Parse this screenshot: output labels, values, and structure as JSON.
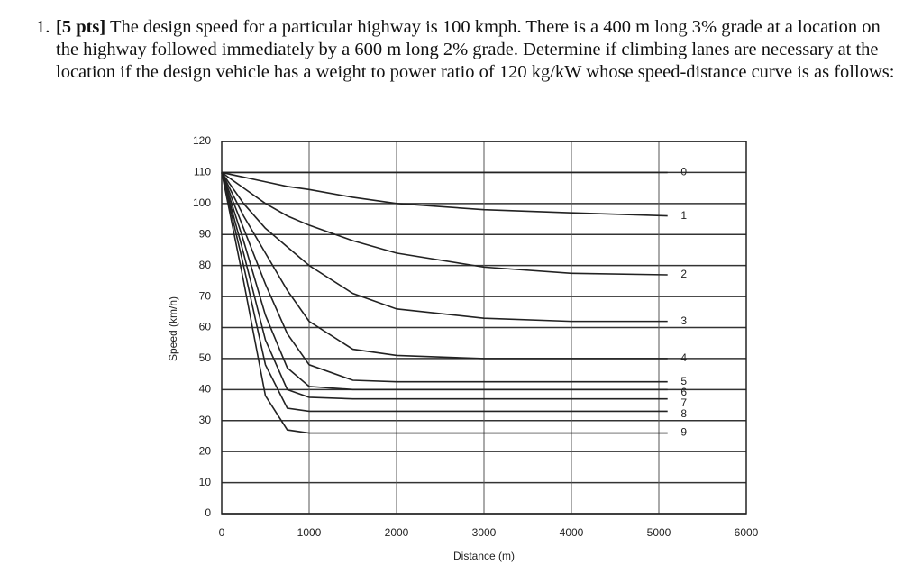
{
  "problem": {
    "number": "1.",
    "points": "[5 pts]",
    "text": "The design speed for a particular highway is 100 kmph. There is a 400 m long 3% grade at a location on the highway followed immediately by a 600 m long 2% grade. Determine if climbing lanes are necessary at the location if the design vehicle has a weight to power ratio of 120 kg/kW whose speed-distance curve is as follows:"
  },
  "chart_data": {
    "type": "line",
    "xlabel": "Distance (m)",
    "ylabel": "Speed (km/h)",
    "x": [
      0,
      250,
      500,
      750,
      1000,
      1500,
      2000,
      3000,
      4000,
      5100
    ],
    "series": [
      {
        "name": "0",
        "color": "#222222",
        "values": [
          110,
          110,
          110,
          110,
          110,
          110,
          110,
          110,
          110,
          110
        ]
      },
      {
        "name": "1",
        "color": "#222222",
        "values": [
          110,
          108.5,
          107,
          105.5,
          104.5,
          102,
          100,
          98,
          97,
          96
        ]
      },
      {
        "name": "2",
        "color": "#222222",
        "values": [
          110,
          105,
          100,
          96,
          93,
          88,
          84,
          79.5,
          77.5,
          77
        ]
      },
      {
        "name": "3",
        "color": "#222222",
        "values": [
          110,
          100,
          92,
          86,
          80,
          71,
          66,
          63,
          62,
          62
        ]
      },
      {
        "name": "4",
        "color": "#222222",
        "values": [
          110,
          96,
          84,
          72,
          62,
          53,
          51,
          50,
          50,
          50
        ]
      },
      {
        "name": "5",
        "color": "#222222",
        "values": [
          110,
          92,
          74,
          58,
          48,
          43,
          42.5,
          42.5,
          42.5,
          42.5
        ]
      },
      {
        "name": "6",
        "color": "#222222",
        "values": [
          110,
          88,
          64,
          47,
          41,
          40,
          40,
          40,
          40,
          40
        ]
      },
      {
        "name": "7",
        "color": "#222222",
        "values": [
          110,
          84,
          56,
          40,
          37.5,
          37,
          37,
          37,
          37,
          37
        ]
      },
      {
        "name": "8",
        "color": "#222222",
        "values": [
          110,
          80,
          48,
          34,
          33,
          33,
          33,
          33,
          33,
          33
        ]
      },
      {
        "name": "9",
        "color": "#222222",
        "values": [
          110,
          75,
          38,
          27,
          26,
          26,
          26,
          26,
          26,
          26
        ]
      }
    ],
    "xlim": [
      0,
      6000
    ],
    "xticks": [
      0,
      1000,
      2000,
      3000,
      4000,
      5000,
      6000
    ],
    "ylim": [
      0,
      120
    ],
    "yticks": [
      0,
      10,
      20,
      30,
      40,
      50,
      60,
      70,
      80,
      90,
      100,
      110,
      120
    ],
    "grid": true
  }
}
